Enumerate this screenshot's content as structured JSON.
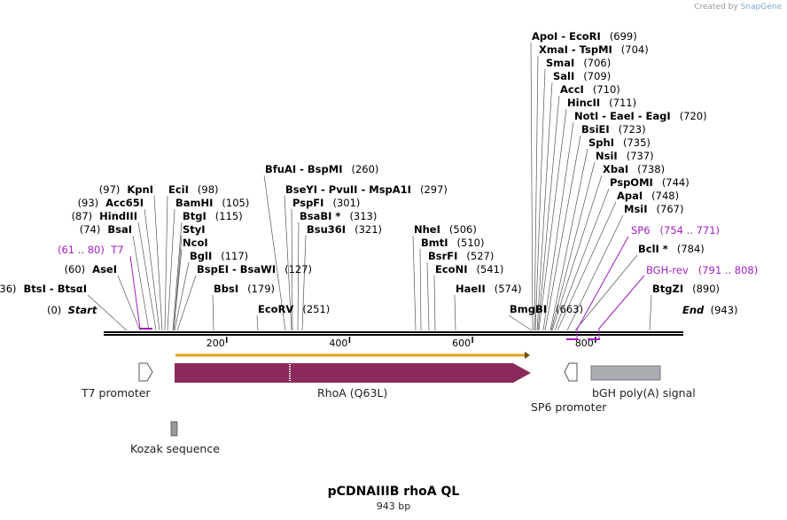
{
  "credit": {
    "prefix": "Created by",
    "brand": "SnapGene"
  },
  "title": "pCDNAIIIB rhoA QL",
  "length_label": "943 bp",
  "start_label": "Start",
  "start_pos": "(0)",
  "end_label": "End",
  "end_pos": "(943)",
  "ruler_ticks": [
    "200",
    "400",
    "600",
    "800"
  ],
  "enzymes": [
    {
      "name": "ApoI  -  EcoRI",
      "pos": "(699)"
    },
    {
      "name": "XmaI  -  TspMI",
      "pos": "(704)"
    },
    {
      "name": "SmaI",
      "pos": "(706)"
    },
    {
      "name": "SalI",
      "pos": "(709)"
    },
    {
      "name": "AccI",
      "pos": "(710)"
    },
    {
      "name": "HincII",
      "pos": "(711)"
    },
    {
      "name": "NotI  -  EaeI  -  EagI",
      "pos": "(720)"
    },
    {
      "name": "BsiEI",
      "pos": "(723)"
    },
    {
      "name": "SphI",
      "pos": "(735)"
    },
    {
      "name": "NsiI",
      "pos": "(737)"
    },
    {
      "name": "XbaI",
      "pos": "(738)"
    },
    {
      "name": "PspOMI",
      "pos": "(744)"
    },
    {
      "name": "ApaI",
      "pos": "(748)"
    },
    {
      "name": "MsiI",
      "pos": "(767)"
    },
    {
      "name": "BclI *",
      "pos": "(784)"
    },
    {
      "name": "BtgZI",
      "pos": "(890)"
    },
    {
      "name": "BmgBI",
      "pos": "(663)"
    },
    {
      "name": "HaeII",
      "pos": "(574)"
    },
    {
      "name": "EcoNI",
      "pos": "(541)"
    },
    {
      "name": "BsrFI",
      "pos": "(527)"
    },
    {
      "name": "BmtI",
      "pos": "(510)"
    },
    {
      "name": "NheI",
      "pos": "(506)"
    },
    {
      "name": "BfuAI  -  BspMI",
      "pos": "(260)"
    },
    {
      "name": "BseYI  -  PvuII  -  MspA1I",
      "pos": "(297)"
    },
    {
      "name": "PspFI",
      "pos": "(301)"
    },
    {
      "name": "BsaBI *",
      "pos": "(313)"
    },
    {
      "name": "Bsu36I",
      "pos": "(321)"
    },
    {
      "name": "EcoRV",
      "pos": "(251)"
    },
    {
      "name": "BbsI",
      "pos": "(179)"
    },
    {
      "name": "BspEI  -  BsaWI",
      "pos": "(127)"
    },
    {
      "name": "BglI",
      "pos": "(117)"
    },
    {
      "name": "NcoI",
      "pos": ""
    },
    {
      "name": "StyI",
      "pos": ""
    },
    {
      "name": "BtgI",
      "pos": "(115)"
    },
    {
      "name": "BamHI",
      "pos": "(105)"
    },
    {
      "name": "EciI",
      "pos": "(98)"
    },
    {
      "name": "KpnI",
      "pos": "(97)"
    },
    {
      "name": "Acc65I",
      "pos": "(93)"
    },
    {
      "name": "HindIII",
      "pos": "(87)"
    },
    {
      "name": "BsaI",
      "pos": "(74)"
    },
    {
      "name": "AseI",
      "pos": "(60)"
    },
    {
      "name": "BtsI  -  BtsαI",
      "pos": "(36)"
    }
  ],
  "primers": [
    {
      "name": "T7",
      "range": "(61 .. 80)"
    },
    {
      "name": "SP6",
      "range": "(754 .. 771)"
    },
    {
      "name": "BGH-rev",
      "range": "(791 .. 808)"
    }
  ],
  "features": [
    {
      "name": "T7 promoter"
    },
    {
      "name": "RhoA (Q63L)"
    },
    {
      "name": "SP6 promoter"
    },
    {
      "name": "bGH poly(A) signal"
    },
    {
      "name": "Kozak sequence"
    }
  ],
  "colors": {
    "cds": "#8b2a5a",
    "polyA": "#a9adb2",
    "primer": "#a020c0",
    "orf": "#e0a020",
    "kozak": "#9a9a9a"
  }
}
